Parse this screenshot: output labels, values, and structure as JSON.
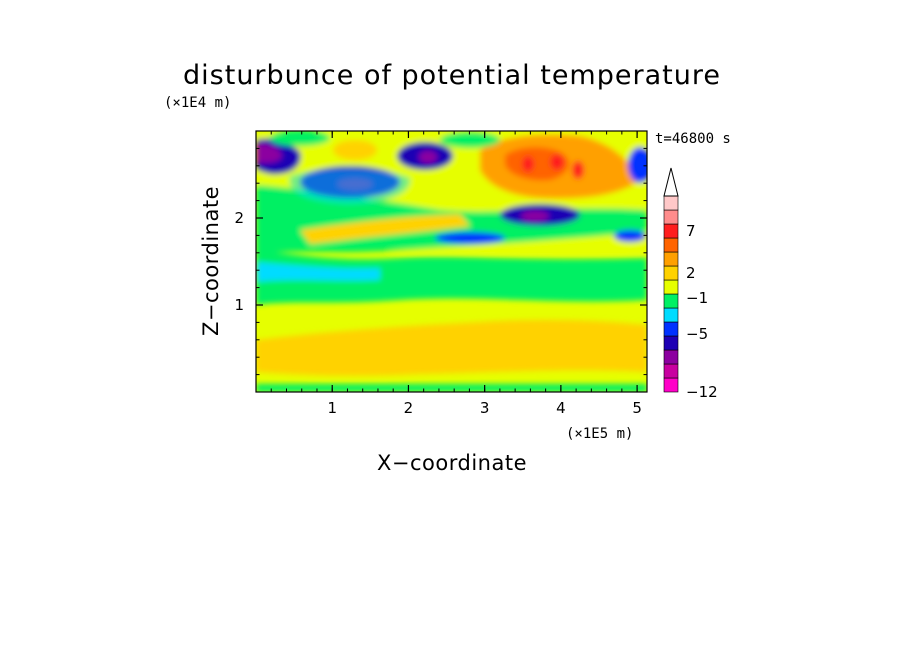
{
  "chart_data": {
    "type": "heatmap",
    "title": "disturbunce of potential temperature",
    "xlabel": "X−coordinate",
    "ylabel": "Z−coordinate",
    "x_unit": "(×1E5 m)",
    "y_unit": "(×1E4 m)",
    "time_label": "t=46800 s",
    "xlim": [
      0,
      5.13
    ],
    "ylim": [
      0,
      3.0
    ],
    "x_ticks": [
      1,
      2,
      3,
      4,
      5
    ],
    "y_ticks": [
      1,
      2
    ],
    "colorbar": {
      "tick_labels": [
        "7",
        "2",
        "−1",
        "−5",
        "−12"
      ],
      "colors": [
        "#ff00c8",
        "#c800a0",
        "#8c00a0",
        "#1e00b4",
        "#0032ff",
        "#00dcff",
        "#00f064",
        "#e6ff00",
        "#ffd200",
        "#ffa000",
        "#ff6400",
        "#ff1e1e",
        "#ff8c8c",
        "#ffc8c8"
      ]
    }
  }
}
